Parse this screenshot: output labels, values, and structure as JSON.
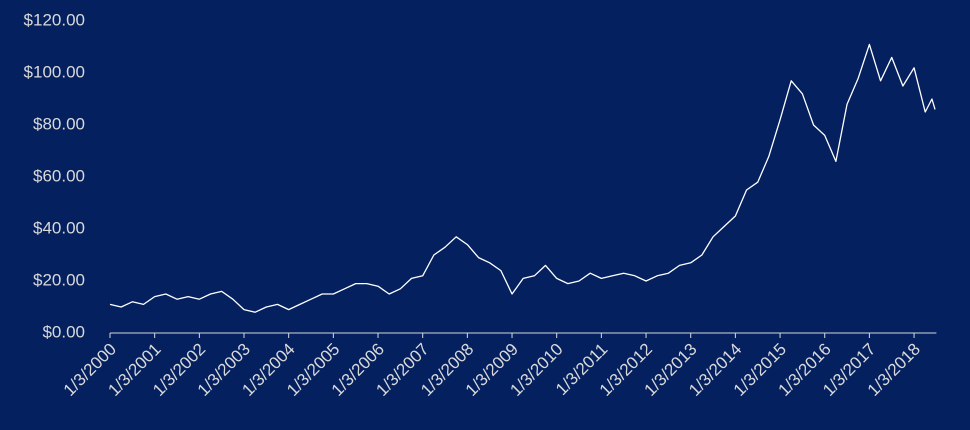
{
  "chart_data": {
    "type": "line",
    "x": [
      2000.0,
      2000.25,
      2000.5,
      2000.75,
      2001.0,
      2001.25,
      2001.5,
      2001.75,
      2002.0,
      2002.25,
      2002.5,
      2002.75,
      2003.0,
      2003.25,
      2003.5,
      2003.75,
      2004.0,
      2004.25,
      2004.5,
      2004.75,
      2005.0,
      2005.25,
      2005.5,
      2005.75,
      2006.0,
      2006.25,
      2006.5,
      2006.75,
      2007.0,
      2007.25,
      2007.5,
      2007.75,
      2008.0,
      2008.25,
      2008.5,
      2008.75,
      2009.0,
      2009.25,
      2009.5,
      2009.75,
      2010.0,
      2010.25,
      2010.5,
      2010.75,
      2011.0,
      2011.25,
      2011.5,
      2011.75,
      2012.0,
      2012.25,
      2012.5,
      2012.75,
      2013.0,
      2013.25,
      2013.5,
      2013.75,
      2014.0,
      2014.25,
      2014.5,
      2014.75,
      2015.0,
      2015.25,
      2015.5,
      2015.75,
      2016.0,
      2016.25,
      2016.5,
      2016.75,
      2017.0,
      2017.25,
      2017.5,
      2017.75,
      2018.0,
      2018.25,
      2018.4,
      2018.47
    ],
    "series": [
      {
        "color": "#ffffff",
        "values": [
          11,
          10,
          12,
          11,
          14,
          15,
          13,
          14,
          13,
          15,
          16,
          13,
          9,
          8,
          10,
          11,
          9,
          11,
          13,
          15,
          15,
          17,
          19,
          19,
          18,
          15,
          17,
          21,
          22,
          30,
          33,
          37,
          34,
          29,
          27,
          24,
          15,
          21,
          22,
          26,
          21,
          19,
          20,
          23,
          21,
          22,
          23,
          22,
          20,
          22,
          23,
          26,
          27,
          30,
          37,
          41,
          45,
          55,
          58,
          68,
          82,
          97,
          92,
          80,
          76,
          66,
          88,
          98,
          111,
          97,
          106,
          95,
          102,
          85,
          90,
          86
        ]
      }
    ],
    "xlim": [
      2000,
      2018.5
    ],
    "xticks": [
      {
        "value": 2000,
        "label": "1/3/2000"
      },
      {
        "value": 2001,
        "label": "1/3/2001"
      },
      {
        "value": 2002,
        "label": "1/3/2002"
      },
      {
        "value": 2003,
        "label": "1/3/2003"
      },
      {
        "value": 2004,
        "label": "1/3/2004"
      },
      {
        "value": 2005,
        "label": "1/3/2005"
      },
      {
        "value": 2006,
        "label": "1/3/2006"
      },
      {
        "value": 2007,
        "label": "1/3/2007"
      },
      {
        "value": 2008,
        "label": "1/3/2008"
      },
      {
        "value": 2009,
        "label": "1/3/2009"
      },
      {
        "value": 2010,
        "label": "1/3/2010"
      },
      {
        "value": 2011,
        "label": "1/3/2011"
      },
      {
        "value": 2012,
        "label": "1/3/2012"
      },
      {
        "value": 2013,
        "label": "1/3/2013"
      },
      {
        "value": 2014,
        "label": "1/3/2014"
      },
      {
        "value": 2015,
        "label": "1/3/2015"
      },
      {
        "value": 2016,
        "label": "1/3/2016"
      },
      {
        "value": 2017,
        "label": "1/3/2017"
      },
      {
        "value": 2018,
        "label": "1/3/2018"
      }
    ],
    "ylim": [
      0,
      120
    ],
    "yticks": [
      {
        "value": 0,
        "label": "$0.00"
      },
      {
        "value": 20,
        "label": "$20.00"
      },
      {
        "value": 40,
        "label": "$40.00"
      },
      {
        "value": 60,
        "label": "$60.00"
      },
      {
        "value": 80,
        "label": "$80.00"
      },
      {
        "value": 100,
        "label": "$100.00"
      },
      {
        "value": 120,
        "label": "$120.00"
      }
    ],
    "grid": false
  }
}
